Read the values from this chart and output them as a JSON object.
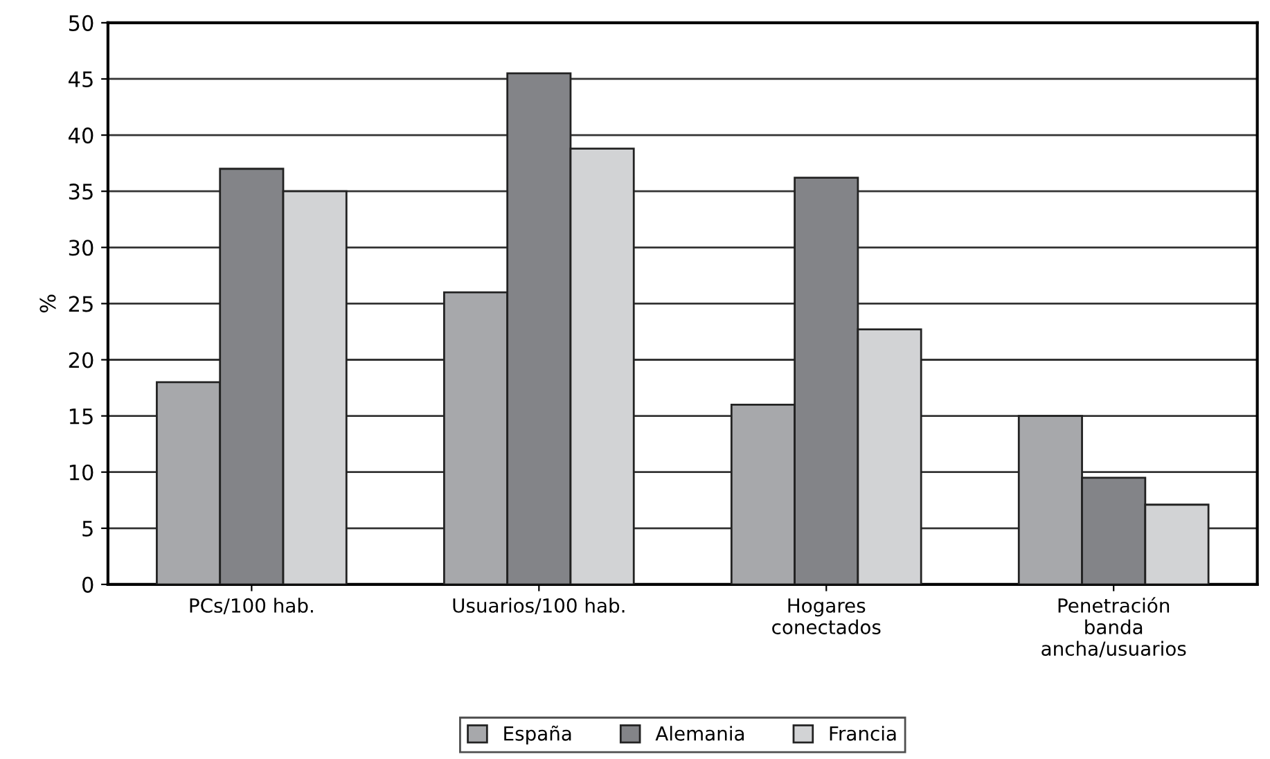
{
  "chart_data": {
    "type": "bar",
    "ylabel": "%",
    "categories": [
      "PCs/100 hab.",
      "Usuarios/100 hab.",
      "Hogares\nconectados",
      "Penetración\nbanda\nancha/usuarios"
    ],
    "series": [
      {
        "name": "España",
        "color": "#a7a8ab",
        "values": [
          18,
          26,
          16,
          15
        ]
      },
      {
        "name": "Alemania",
        "color": "#838488",
        "values": [
          37,
          45.5,
          36.2,
          9.5
        ]
      },
      {
        "name": "Francia",
        "color": "#d2d3d5",
        "values": [
          35,
          38.8,
          22.7,
          7.1
        ]
      }
    ],
    "ylim": [
      0,
      50
    ],
    "yticks": [
      0,
      5,
      10,
      15,
      20,
      25,
      30,
      35,
      40,
      45,
      50
    ],
    "grid": "y",
    "legend": "bottom"
  }
}
